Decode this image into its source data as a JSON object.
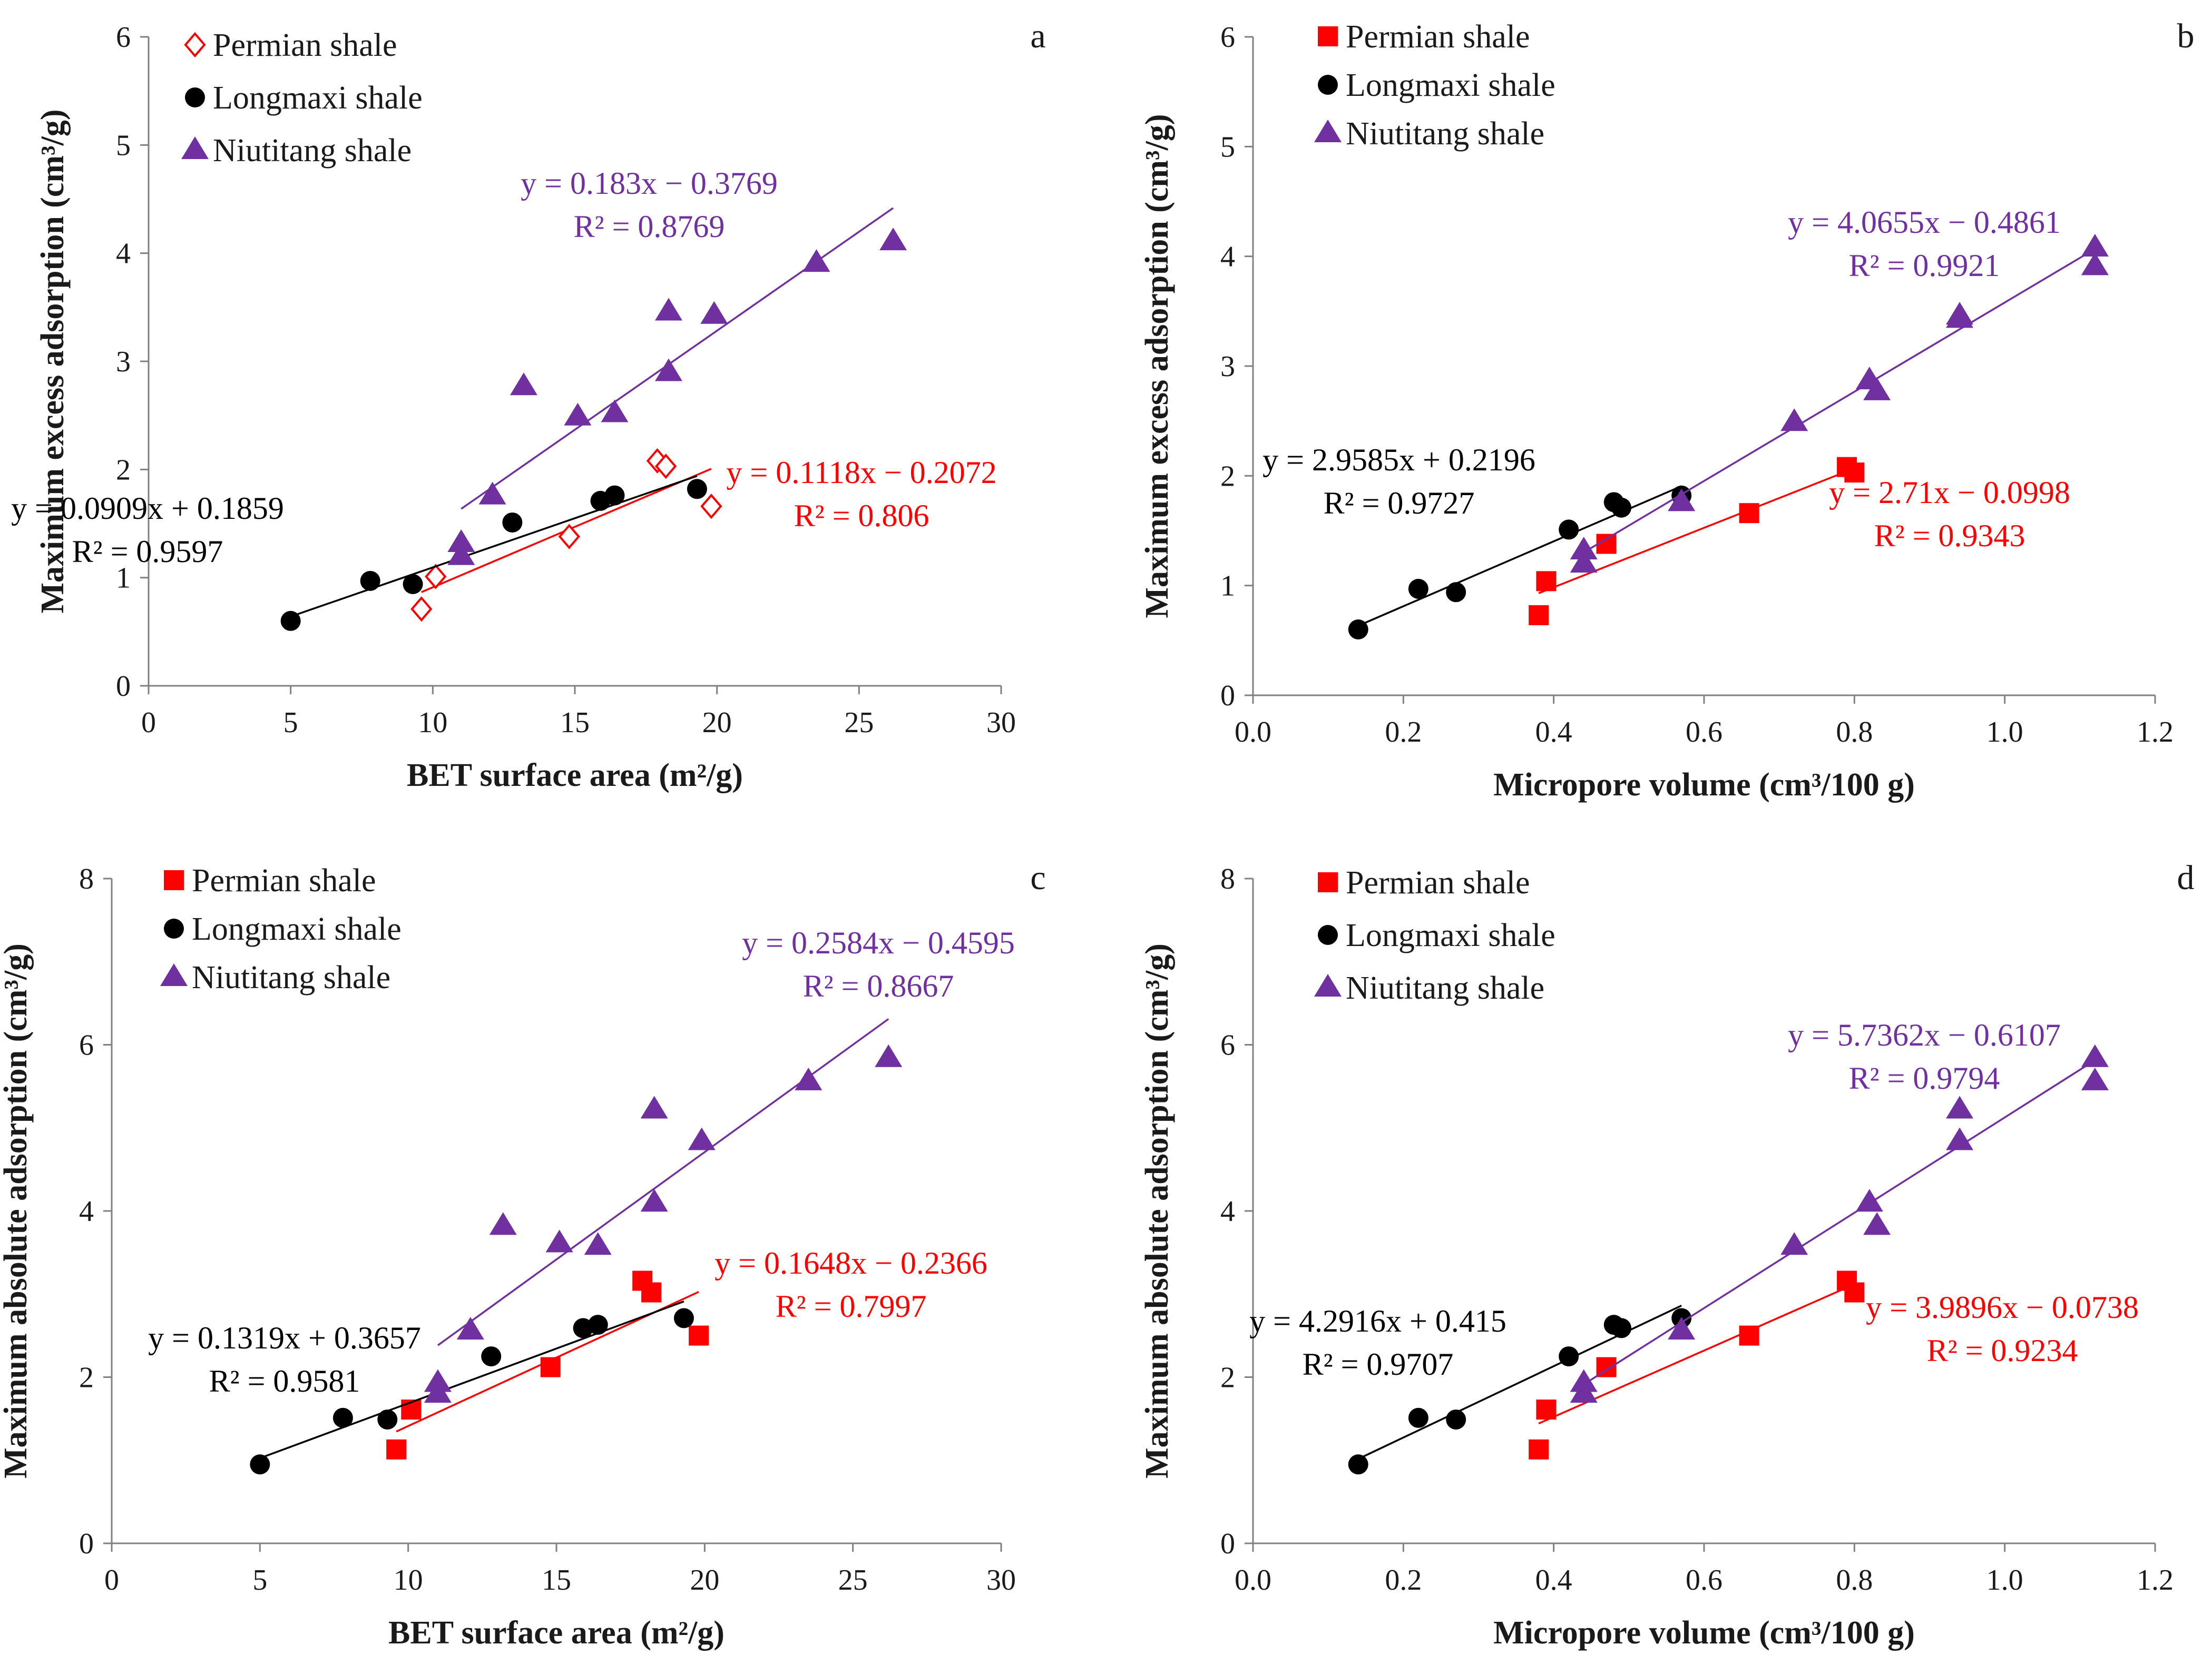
{
  "colors": {
    "permian": "#ff0000",
    "longmaxi": "#000000",
    "niutitang": "#7030a0",
    "axis": "#808080"
  },
  "chart_data": [
    {
      "id": "a",
      "type": "scatter",
      "panel_letter": "a",
      "xlabel": "BET surface area (m²/g)",
      "ylabel": "Maximum excess adsorption (cm³/g)",
      "xlim": [
        0,
        30
      ],
      "ylim": [
        0,
        6
      ],
      "xticks": [
        0,
        5,
        10,
        15,
        20,
        25,
        30
      ],
      "xtick_labels": [
        "0",
        "5",
        "10",
        "15",
        "20",
        "25",
        "30"
      ],
      "yticks": [
        0,
        1,
        2,
        3,
        4,
        5,
        6
      ],
      "ytick_labels": [
        "0",
        "1",
        "2",
        "3",
        "4",
        "5",
        "6"
      ],
      "legend": [
        "Permian shale",
        "Longmaxi shale",
        "Niutitang shale"
      ],
      "series": [
        {
          "name": "Permian shale",
          "marker": "diamond-open",
          "color": "#ff0000",
          "points": [
            [
              9.6,
              0.71
            ],
            [
              10.1,
              1.01
            ],
            [
              14.8,
              1.38
            ],
            [
              17.9,
              2.08
            ],
            [
              18.2,
              2.03
            ],
            [
              19.8,
              1.66
            ]
          ],
          "fit": {
            "slope": 0.1118,
            "intercept": -0.2072,
            "x_range": [
              9.6,
              19.8
            ],
            "equation": "y = 0.1118x − 0.2072",
            "r2": "R² = 0.806"
          }
        },
        {
          "name": "Longmaxi shale",
          "marker": "circle",
          "color": "#000000",
          "points": [
            [
              5.0,
              0.6
            ],
            [
              7.8,
              0.97
            ],
            [
              9.3,
              0.94
            ],
            [
              12.8,
              1.51
            ],
            [
              15.9,
              1.71
            ],
            [
              16.4,
              1.76
            ],
            [
              19.3,
              1.82
            ]
          ],
          "fit": {
            "slope": 0.0909,
            "intercept": 0.1859,
            "x_range": [
              5.0,
              19.3
            ],
            "equation": "y = 0.0909x + 0.1859",
            "r2": "R² = 0.9597"
          }
        },
        {
          "name": "Niutitang shale",
          "marker": "triangle",
          "color": "#7030a0",
          "points": [
            [
              11.0,
              1.32
            ],
            [
              11.0,
              1.2
            ],
            [
              12.1,
              1.76
            ],
            [
              13.2,
              2.77
            ],
            [
              15.1,
              2.49
            ],
            [
              16.4,
              2.52
            ],
            [
              18.3,
              3.46
            ],
            [
              18.3,
              2.9
            ],
            [
              19.9,
              3.43
            ],
            [
              23.5,
              3.91
            ],
            [
              26.2,
              4.11
            ]
          ],
          "fit": {
            "slope": 0.183,
            "intercept": -0.3769,
            "x_range": [
              11.0,
              26.2
            ],
            "equation": "y = 0.183x − 0.3769",
            "r2": "R² = 0.8769"
          }
        }
      ]
    },
    {
      "id": "b",
      "type": "scatter",
      "panel_letter": "b",
      "xlabel": "Micropore volume (cm³/100 g)",
      "ylabel": "Maximum excess adsorption (cm³/g)",
      "xlim": [
        0,
        1.2
      ],
      "ylim": [
        0,
        6
      ],
      "xticks": [
        0,
        0.2,
        0.4,
        0.6,
        0.8,
        1.0,
        1.2
      ],
      "xtick_labels": [
        "0.0",
        "0.2",
        "0.4",
        "0.6",
        "0.8",
        "1.0",
        "1.2"
      ],
      "yticks": [
        0,
        1,
        2,
        3,
        4,
        5,
        6
      ],
      "ytick_labels": [
        "0",
        "1",
        "2",
        "3",
        "4",
        "5",
        "6"
      ],
      "legend": [
        "Permian shale",
        "Longmaxi shale",
        "Niutitang shale"
      ],
      "series": [
        {
          "name": "Permian shale",
          "marker": "square",
          "color": "#ff0000",
          "points": [
            [
              0.38,
              0.73
            ],
            [
              0.39,
              1.04
            ],
            [
              0.47,
              1.38
            ],
            [
              0.66,
              1.66
            ],
            [
              0.79,
              2.08
            ],
            [
              0.8,
              2.03
            ]
          ],
          "fit": {
            "slope": 2.71,
            "intercept": -0.0998,
            "x_range": [
              0.38,
              0.8
            ],
            "equation": "y = 2.71x − 0.0998",
            "r2": "R² = 0.9343"
          }
        },
        {
          "name": "Longmaxi shale",
          "marker": "circle",
          "color": "#000000",
          "points": [
            [
              0.14,
              0.6
            ],
            [
              0.22,
              0.97
            ],
            [
              0.27,
              0.94
            ],
            [
              0.42,
              1.51
            ],
            [
              0.48,
              1.76
            ],
            [
              0.49,
              1.71
            ],
            [
              0.57,
              1.82
            ]
          ],
          "fit": {
            "slope": 2.9585,
            "intercept": 0.2196,
            "x_range": [
              0.14,
              0.57
            ],
            "equation": "y = 2.9585x + 0.2196",
            "r2": "R² = 0.9727"
          }
        },
        {
          "name": "Niutitang shale",
          "marker": "triangle",
          "color": "#7030a0",
          "points": [
            [
              0.44,
              1.32
            ],
            [
              0.44,
              1.2
            ],
            [
              0.57,
              1.76
            ],
            [
              0.72,
              2.49
            ],
            [
              0.82,
              2.87
            ],
            [
              0.83,
              2.77
            ],
            [
              0.94,
              3.46
            ],
            [
              0.94,
              3.43
            ],
            [
              1.12,
              4.08
            ],
            [
              1.12,
              3.91
            ]
          ],
          "fit": {
            "slope": 4.0655,
            "intercept": -0.4861,
            "x_range": [
              0.44,
              1.12
            ],
            "equation": "y = 4.0655x − 0.4861",
            "r2": "R² = 0.9921"
          }
        }
      ]
    },
    {
      "id": "c",
      "type": "scatter",
      "panel_letter": "c",
      "xlabel": "BET surface area (m²/g)",
      "ylabel": "Maximum absolute adsorption (cm³/g)",
      "xlim": [
        0,
        30
      ],
      "ylim": [
        0,
        8
      ],
      "xticks": [
        0,
        5,
        10,
        15,
        20,
        25,
        30
      ],
      "xtick_labels": [
        "0",
        "5",
        "10",
        "15",
        "20",
        "25",
        "30"
      ],
      "yticks": [
        0,
        2,
        4,
        6,
        8
      ],
      "ytick_labels": [
        "0",
        "2",
        "4",
        "6",
        "8"
      ],
      "legend": [
        "Permian shale",
        "Longmaxi shale",
        "Niutitang shale"
      ],
      "series": [
        {
          "name": "Permian shale",
          "marker": "square",
          "color": "#ff0000",
          "points": [
            [
              9.6,
              1.13
            ],
            [
              10.1,
              1.61
            ],
            [
              14.8,
              2.12
            ],
            [
              17.9,
              3.16
            ],
            [
              18.2,
              3.02
            ],
            [
              19.8,
              2.5
            ]
          ],
          "fit": {
            "slope": 0.1648,
            "intercept": -0.2366,
            "x_range": [
              9.6,
              19.8
            ],
            "equation": "y = 0.1648x − 0.2366",
            "r2": "R² = 0.7997"
          }
        },
        {
          "name": "Longmaxi shale",
          "marker": "circle",
          "color": "#000000",
          "points": [
            [
              5.0,
              0.95
            ],
            [
              7.8,
              1.51
            ],
            [
              9.3,
              1.49
            ],
            [
              12.8,
              2.25
            ],
            [
              15.9,
              2.59
            ],
            [
              16.4,
              2.63
            ],
            [
              19.3,
              2.71
            ]
          ],
          "fit": {
            "slope": 0.1319,
            "intercept": 0.3657,
            "x_range": [
              5.0,
              19.3
            ],
            "equation": "y = 0.1319x + 0.3657",
            "r2": "R² = 0.9581"
          }
        },
        {
          "name": "Niutitang shale",
          "marker": "triangle",
          "color": "#7030a0",
          "points": [
            [
              11.0,
              1.93
            ],
            [
              11.0,
              1.8
            ],
            [
              12.1,
              2.56
            ],
            [
              13.2,
              3.82
            ],
            [
              15.1,
              3.61
            ],
            [
              16.4,
              3.58
            ],
            [
              18.3,
              5.22
            ],
            [
              18.3,
              4.1
            ],
            [
              19.9,
              4.84
            ],
            [
              23.5,
              5.56
            ],
            [
              26.2,
              5.84
            ]
          ],
          "fit": {
            "slope": 0.2584,
            "intercept": -0.4595,
            "x_range": [
              11.0,
              26.2
            ],
            "equation": "y = 0.2584x − 0.4595",
            "r2": "R² = 0.8667"
          }
        }
      ]
    },
    {
      "id": "d",
      "type": "scatter",
      "panel_letter": "d",
      "xlabel": "Micropore volume (cm³/100 g)",
      "ylabel": "Maximum absolute adsorption (cm³/g)",
      "xlim": [
        0,
        1.2
      ],
      "ylim": [
        0,
        8
      ],
      "xticks": [
        0,
        0.2,
        0.4,
        0.6,
        0.8,
        1.0,
        1.2
      ],
      "xtick_labels": [
        "0.0",
        "0.2",
        "0.4",
        "0.6",
        "0.8",
        "1.0",
        "1.2"
      ],
      "yticks": [
        0,
        2,
        4,
        6,
        8
      ],
      "ytick_labels": [
        "0",
        "2",
        "4",
        "6",
        "8"
      ],
      "legend": [
        "Permian shale",
        "Longmaxi shale",
        "Niutitang shale"
      ],
      "series": [
        {
          "name": "Permian shale",
          "marker": "square",
          "color": "#ff0000",
          "points": [
            [
              0.38,
              1.13
            ],
            [
              0.39,
              1.61
            ],
            [
              0.47,
              2.12
            ],
            [
              0.66,
              2.5
            ],
            [
              0.79,
              3.16
            ],
            [
              0.8,
              3.02
            ]
          ],
          "fit": {
            "slope": 3.9896,
            "intercept": -0.0738,
            "x_range": [
              0.38,
              0.8
            ],
            "equation": "y = 3.9896x − 0.0738",
            "r2": "R² = 0.9234"
          }
        },
        {
          "name": "Longmaxi shale",
          "marker": "circle",
          "color": "#000000",
          "points": [
            [
              0.14,
              0.95
            ],
            [
              0.22,
              1.51
            ],
            [
              0.27,
              1.49
            ],
            [
              0.42,
              2.25
            ],
            [
              0.48,
              2.63
            ],
            [
              0.49,
              2.59
            ],
            [
              0.57,
              2.71
            ]
          ],
          "fit": {
            "slope": 4.2916,
            "intercept": 0.415,
            "x_range": [
              0.14,
              0.57
            ],
            "equation": "y = 4.2916x + 0.415",
            "r2": "R² = 0.9707"
          }
        },
        {
          "name": "Niutitang shale",
          "marker": "triangle",
          "color": "#7030a0",
          "points": [
            [
              0.44,
              1.93
            ],
            [
              0.44,
              1.8
            ],
            [
              0.57,
              2.56
            ],
            [
              0.72,
              3.58
            ],
            [
              0.82,
              4.1
            ],
            [
              0.83,
              3.82
            ],
            [
              0.94,
              5.22
            ],
            [
              0.94,
              4.84
            ],
            [
              1.12,
              5.84
            ],
            [
              1.12,
              5.56
            ]
          ],
          "fit": {
            "slope": 5.7362,
            "intercept": -0.6107,
            "x_range": [
              0.44,
              1.12
            ],
            "equation": "y = 5.7362x − 0.6107",
            "r2": "R² = 0.9794"
          }
        }
      ]
    }
  ]
}
